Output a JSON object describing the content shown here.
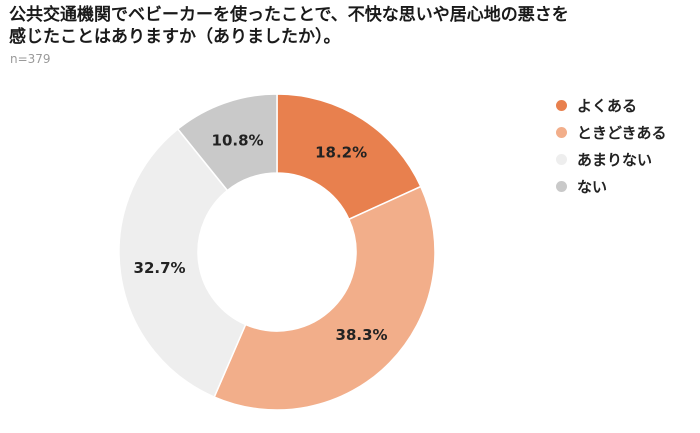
{
  "title_line1": "公共交通機関でベビーカーを使ったことで、不快な思いや居心地の悪さを",
  "title_line2": "感じたことはありますか（ありましたか）。",
  "sample_label": "n=379",
  "chart_data": {
    "type": "pie",
    "variant": "donut",
    "title": "公共交通機関でベビーカーを使ったことで、不快な思いや居心地の悪さを感じたことはありますか（ありましたか）。",
    "subtitle": "n=379",
    "unit": "%",
    "legend_position": "right",
    "slices": [
      {
        "name": "よくある",
        "value": 18.2,
        "label": "18.2%",
        "color": "#e8804e"
      },
      {
        "name": "ときどきある",
        "value": 38.3,
        "label": "38.3%",
        "color": "#f2ae8a"
      },
      {
        "name": "あまりない",
        "value": 32.7,
        "label": "32.7%",
        "color": "#eeeeee"
      },
      {
        "name": "ない",
        "value": 10.8,
        "label": "10.8%",
        "color": "#c9c9c9"
      }
    ]
  }
}
